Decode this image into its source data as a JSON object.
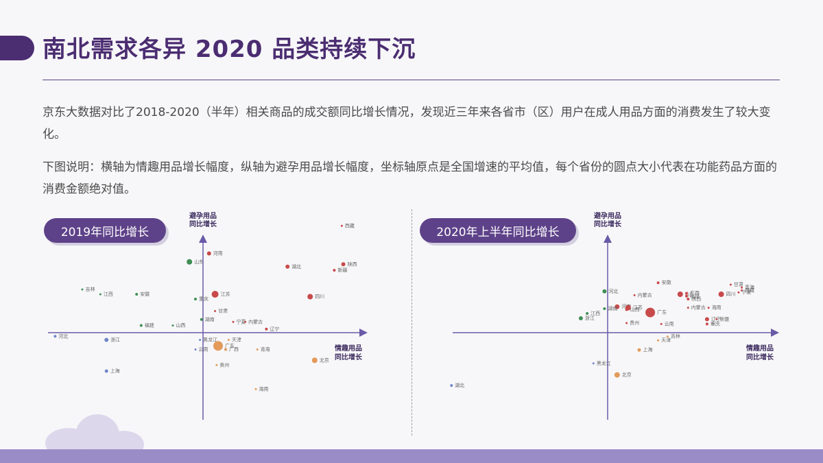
{
  "header": {
    "title": "南北需求各异 2020 品类持续下沉"
  },
  "body": {
    "paragraph1": "京东大数据对比了2018-2020（半年）相关商品的成交额同比增长情况，发现近三年来各省市（区）用户在成人用品方面的消费发生了较大变化。",
    "paragraph2": "下图说明：横轴为情趣用品增长幅度，纵轴为避孕用品增长幅度，坐标轴原点是全国增速的平均值，每个省份的圆点大小代表在功能药品方面的消费金额绝对值。"
  },
  "colors": {
    "title": "#4b2d71",
    "axis": "#6a5aa8",
    "red": "#c84a4a",
    "green": "#3f8f55",
    "blue": "#6f86c6",
    "orange": "#e39a5a"
  },
  "chart_data": [
    {
      "type": "scatter",
      "title": "2019年同比增长",
      "xlabel": [
        "情趣用品",
        "同比增长"
      ],
      "ylabel": [
        "避孕用品",
        "同比增长"
      ],
      "xlim": [
        -10,
        10
      ],
      "ylim": [
        -10,
        10
      ],
      "points": [
        {
          "name": "西藏",
          "x": 9.2,
          "y": 8.9,
          "size": 1.5,
          "color": "red"
        },
        {
          "name": "河南",
          "x": 0.4,
          "y": 6.6,
          "size": 3,
          "color": "red"
        },
        {
          "name": "山东",
          "x": -0.9,
          "y": 5.9,
          "size": 4,
          "color": "green"
        },
        {
          "name": "湖北",
          "x": 5.6,
          "y": 5.5,
          "size": 3,
          "color": "red"
        },
        {
          "name": "陕西",
          "x": 9.3,
          "y": 5.7,
          "size": 3,
          "color": "red"
        },
        {
          "name": "新疆",
          "x": 8.7,
          "y": 5.2,
          "size": 2,
          "color": "red"
        },
        {
          "name": "吉林",
          "x": -8.0,
          "y": 3.6,
          "size": 1.5,
          "color": "green"
        },
        {
          "name": "江西",
          "x": -6.8,
          "y": 3.2,
          "size": 1.5,
          "color": "green"
        },
        {
          "name": "安徽",
          "x": -4.4,
          "y": 3.2,
          "size": 2,
          "color": "green"
        },
        {
          "name": "重庆",
          "x": -0.5,
          "y": 2.8,
          "size": 2,
          "color": "green"
        },
        {
          "name": "江苏",
          "x": 0.8,
          "y": 3.2,
          "size": 5,
          "color": "red"
        },
        {
          "name": "四川",
          "x": 7.1,
          "y": 3.0,
          "size": 4,
          "color": "red"
        },
        {
          "name": "甘肃",
          "x": 0.8,
          "y": 1.8,
          "size": 1.5,
          "color": "red"
        },
        {
          "name": "湖南",
          "x": -0.1,
          "y": 1.1,
          "size": 2,
          "color": "green"
        },
        {
          "name": "宁夏",
          "x": 2.0,
          "y": 0.9,
          "size": 1.5,
          "color": "red"
        },
        {
          "name": "内蒙古",
          "x": 2.8,
          "y": 0.9,
          "size": 1.5,
          "color": "red"
        },
        {
          "name": "福建",
          "x": -4.1,
          "y": 0.6,
          "size": 2,
          "color": "green"
        },
        {
          "name": "山西",
          "x": -2.0,
          "y": 0.6,
          "size": 1.5,
          "color": "green"
        },
        {
          "name": "辽宁",
          "x": 4.2,
          "y": 0.3,
          "size": 2,
          "color": "red"
        },
        {
          "name": "河北",
          "x": -9.8,
          "y": -0.3,
          "size": 2,
          "color": "blue"
        },
        {
          "name": "浙江",
          "x": -6.4,
          "y": -0.6,
          "size": 3,
          "color": "blue"
        },
        {
          "name": "天津",
          "x": 1.7,
          "y": -0.6,
          "size": 1.5,
          "color": "orange"
        },
        {
          "name": "黑龙江",
          "x": -0.2,
          "y": -0.6,
          "size": 1.5,
          "color": "blue"
        },
        {
          "name": "广东",
          "x": 1.0,
          "y": -1.1,
          "size": 7,
          "color": "orange"
        },
        {
          "name": "云南",
          "x": -0.5,
          "y": -1.4,
          "size": 1.5,
          "color": "blue"
        },
        {
          "name": "广西",
          "x": 1.5,
          "y": -1.4,
          "size": 2,
          "color": "orange"
        },
        {
          "name": "青海",
          "x": 3.6,
          "y": -1.4,
          "size": 1.5,
          "color": "orange"
        },
        {
          "name": "北京",
          "x": 7.4,
          "y": -2.3,
          "size": 4,
          "color": "orange"
        },
        {
          "name": "贵州",
          "x": 0.9,
          "y": -2.7,
          "size": 1.5,
          "color": "orange"
        },
        {
          "name": "上海",
          "x": -6.4,
          "y": -3.2,
          "size": 2.5,
          "color": "blue"
        },
        {
          "name": "海南",
          "x": 3.5,
          "y": -4.7,
          "size": 1.5,
          "color": "orange"
        }
      ]
    },
    {
      "type": "scatter",
      "title": "2020年上半年同比增长",
      "xlabel": [
        "情趣用品",
        "同比增长"
      ],
      "ylabel": [
        "避孕用品",
        "同比增长"
      ],
      "xlim": [
        -10,
        10
      ],
      "ylim": [
        -10,
        10
      ],
      "points": [
        {
          "name": "安徽",
          "x": 3.2,
          "y": 5.2,
          "size": 2,
          "color": "red"
        },
        {
          "name": "甘肃",
          "x": 7.8,
          "y": 5.0,
          "size": 1.5,
          "color": "red"
        },
        {
          "name": "青海",
          "x": 8.5,
          "y": 4.7,
          "size": 1.5,
          "color": "red"
        },
        {
          "name": "西藏",
          "x": 8.5,
          "y": 4.4,
          "size": 1.5,
          "color": "red"
        },
        {
          "name": "宁夏",
          "x": 8.3,
          "y": 4.2,
          "size": 1.5,
          "color": "red"
        },
        {
          "name": "河北",
          "x": -0.2,
          "y": 4.3,
          "size": 3,
          "color": "green"
        },
        {
          "name": "山东",
          "x": 4.6,
          "y": 4.0,
          "size": 4,
          "color": "red"
        },
        {
          "name": "广西",
          "x": 5.0,
          "y": 4.1,
          "size": 2,
          "color": "red"
        },
        {
          "name": "福建",
          "x": 5.0,
          "y": 3.8,
          "size": 2,
          "color": "red"
        },
        {
          "name": "四川",
          "x": 7.2,
          "y": 4.0,
          "size": 4,
          "color": "red"
        },
        {
          "name": "内蒙古",
          "x": 1.7,
          "y": 3.9,
          "size": 1.5,
          "color": "red"
        },
        {
          "name": "陕西",
          "x": 5.1,
          "y": 3.5,
          "size": 2,
          "color": "red"
        },
        {
          "name": "河南",
          "x": 0.6,
          "y": 2.7,
          "size": 3.5,
          "color": "red"
        },
        {
          "name": "江苏",
          "x": 1.3,
          "y": 2.6,
          "size": 4,
          "color": "red"
        },
        {
          "name": "内蒙古",
          "x": 5.1,
          "y": 2.6,
          "size": 1.5,
          "color": "red"
        },
        {
          "name": "湖南",
          "x": -0.2,
          "y": 2.5,
          "size": 2,
          "color": "green"
        },
        {
          "name": "山西",
          "x": 1.2,
          "y": 2.4,
          "size": 2,
          "color": "red"
        },
        {
          "name": "海南",
          "x": 6.4,
          "y": 2.6,
          "size": 1.5,
          "color": "red"
        },
        {
          "name": "江西",
          "x": -1.3,
          "y": 2.0,
          "size": 2,
          "color": "green"
        },
        {
          "name": "广东",
          "x": 2.7,
          "y": 2.1,
          "size": 7,
          "color": "red"
        },
        {
          "name": "浙江",
          "x": -1.7,
          "y": 1.5,
          "size": 3,
          "color": "green"
        },
        {
          "name": "辽宁",
          "x": 6.3,
          "y": 1.4,
          "size": 3,
          "color": "red"
        },
        {
          "name": "新疆",
          "x": 6.9,
          "y": 1.4,
          "size": 1.5,
          "color": "red"
        },
        {
          "name": "贵州",
          "x": 1.2,
          "y": 1.0,
          "size": 1.5,
          "color": "red"
        },
        {
          "name": "云南",
          "x": 3.4,
          "y": 0.9,
          "size": 1.5,
          "color": "red"
        },
        {
          "name": "重庆",
          "x": 6.3,
          "y": 0.9,
          "size": 2,
          "color": "red"
        },
        {
          "name": "吉林",
          "x": 3.8,
          "y": -0.4,
          "size": 1.5,
          "color": "orange"
        },
        {
          "name": "天津",
          "x": 3.2,
          "y": -0.8,
          "size": 1.5,
          "color": "orange"
        },
        {
          "name": "上海",
          "x": 2.0,
          "y": -1.8,
          "size": 2.5,
          "color": "orange"
        },
        {
          "name": "黑龙江",
          "x": -0.9,
          "y": -3.2,
          "size": 1.5,
          "color": "blue"
        },
        {
          "name": "北京",
          "x": 0.6,
          "y": -4.4,
          "size": 4,
          "color": "orange"
        },
        {
          "name": "湖北",
          "x": -9.9,
          "y": -5.5,
          "size": 2,
          "color": "blue"
        }
      ]
    }
  ]
}
